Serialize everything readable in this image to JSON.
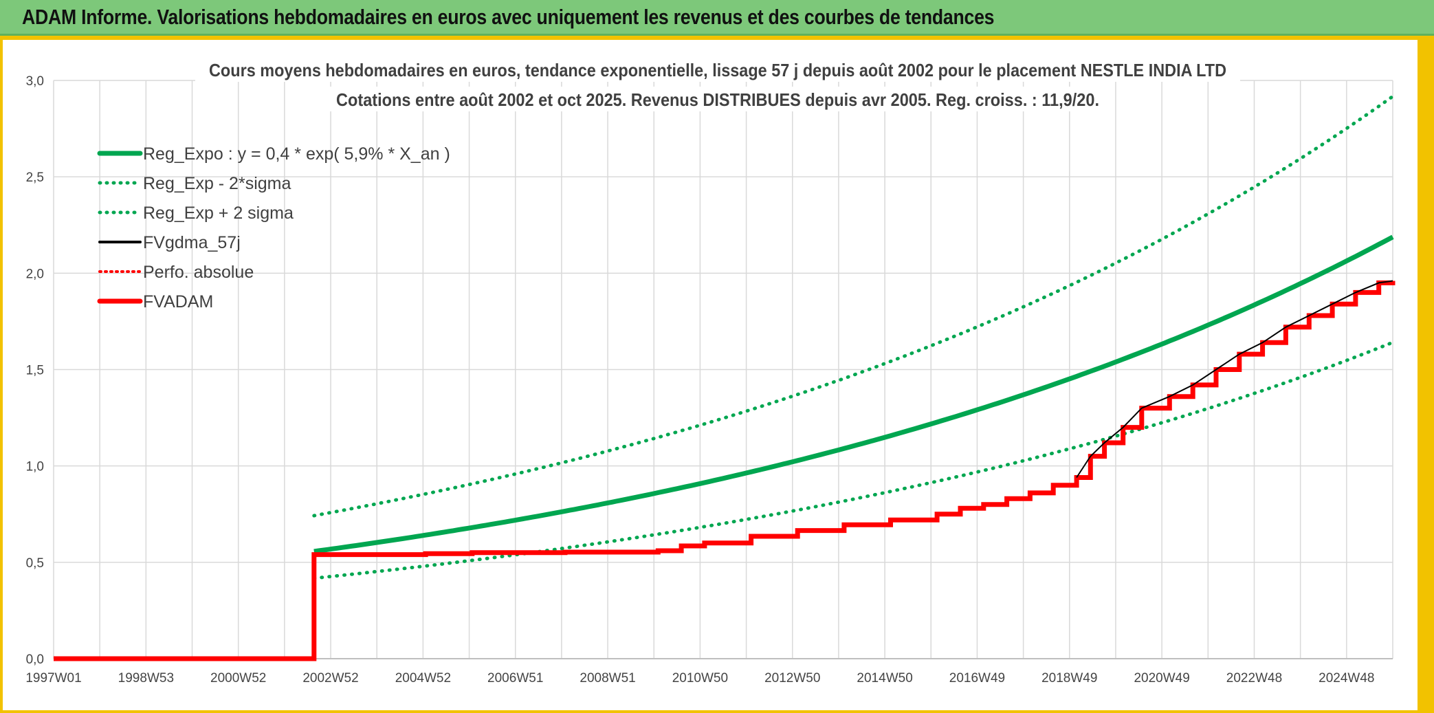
{
  "banner": {
    "title": "ADAM Informe. Valorisations hebdomadaires en euros avec uniquement les revenus et des courbes de tendances"
  },
  "colors": {
    "banner_bg": "#7dc87a",
    "frame": "#f2c200",
    "regression": "#00a650",
    "fvgdma": "#000000",
    "fvadam": "#ff0000",
    "perfo": "#ff0000",
    "grid": "#d9d9d9"
  },
  "chart_data": {
    "type": "line",
    "title": "Cours moyens hebdomadaires en euros, tendance exponentielle, lissage 57 j depuis août 2002 pour le placement NESTLE INDIA LTD",
    "subtitle": "Cotations entre août 2002 et oct 2025. Revenus DISTRIBUES depuis avr 2005. Reg. croiss. : 11,9/20.",
    "ylim": [
      0,
      3
    ],
    "y_ticks": [
      "0,0",
      "0,5",
      "1,0",
      "1,5",
      "2,0",
      "2,5",
      "3,0"
    ],
    "x_range": [
      1997.0,
      2025.8
    ],
    "x_tick_labels": [
      "1997W01",
      "1998W53",
      "2000W52",
      "2002W52",
      "2004W52",
      "2006W51",
      "2008W51",
      "2010W50",
      "2012W50",
      "2014W50",
      "2016W49",
      "2018W49",
      "2020W49",
      "2022W48",
      "2024W48"
    ],
    "legend_position": "top-left",
    "regression": {
      "a": 0.4,
      "growth_rate": 0.059,
      "start": 2002.6,
      "end": 2025.8,
      "sigma_factor": 0.75
    },
    "series": [
      {
        "name": "Reg_Expo : y = 0,4 * exp( 5,9% *  X_an )",
        "style": "solid-green-thick"
      },
      {
        "name": "Reg_Exp - 2*sigma",
        "style": "dotted-green"
      },
      {
        "name": "Reg_Exp + 2 sigma",
        "style": "dotted-green"
      },
      {
        "name": "FVgdma_57j",
        "style": "solid-black"
      },
      {
        "name": "Perfo. absolue",
        "style": "dotted-red"
      },
      {
        "name": "FVADAM",
        "style": "solid-red-thick",
        "x": [
          1997.0,
          2002.6,
          2002.6,
          2003.0,
          2004.0,
          2005.0,
          2006.0,
          2007.0,
          2008.0,
          2009.0,
          2010.0,
          2010.5,
          2011.0,
          2012.0,
          2013.0,
          2014.0,
          2015.0,
          2016.0,
          2016.5,
          2017.0,
          2017.5,
          2018.0,
          2018.5,
          2019.0,
          2019.3,
          2019.6,
          2020.0,
          2020.4,
          2021.0,
          2021.5,
          2022.0,
          2022.5,
          2023.0,
          2023.5,
          2024.0,
          2024.5,
          2025.0,
          2025.5,
          2025.8
        ],
        "y": [
          0.0,
          0.0,
          0.54,
          0.54,
          0.54,
          0.545,
          0.55,
          0.55,
          0.553,
          0.553,
          0.56,
          0.585,
          0.6,
          0.635,
          0.665,
          0.695,
          0.72,
          0.75,
          0.78,
          0.8,
          0.83,
          0.86,
          0.9,
          0.94,
          1.05,
          1.12,
          1.2,
          1.3,
          1.36,
          1.42,
          1.5,
          1.58,
          1.64,
          1.72,
          1.78,
          1.84,
          1.9,
          1.95,
          1.96
        ]
      }
    ]
  }
}
